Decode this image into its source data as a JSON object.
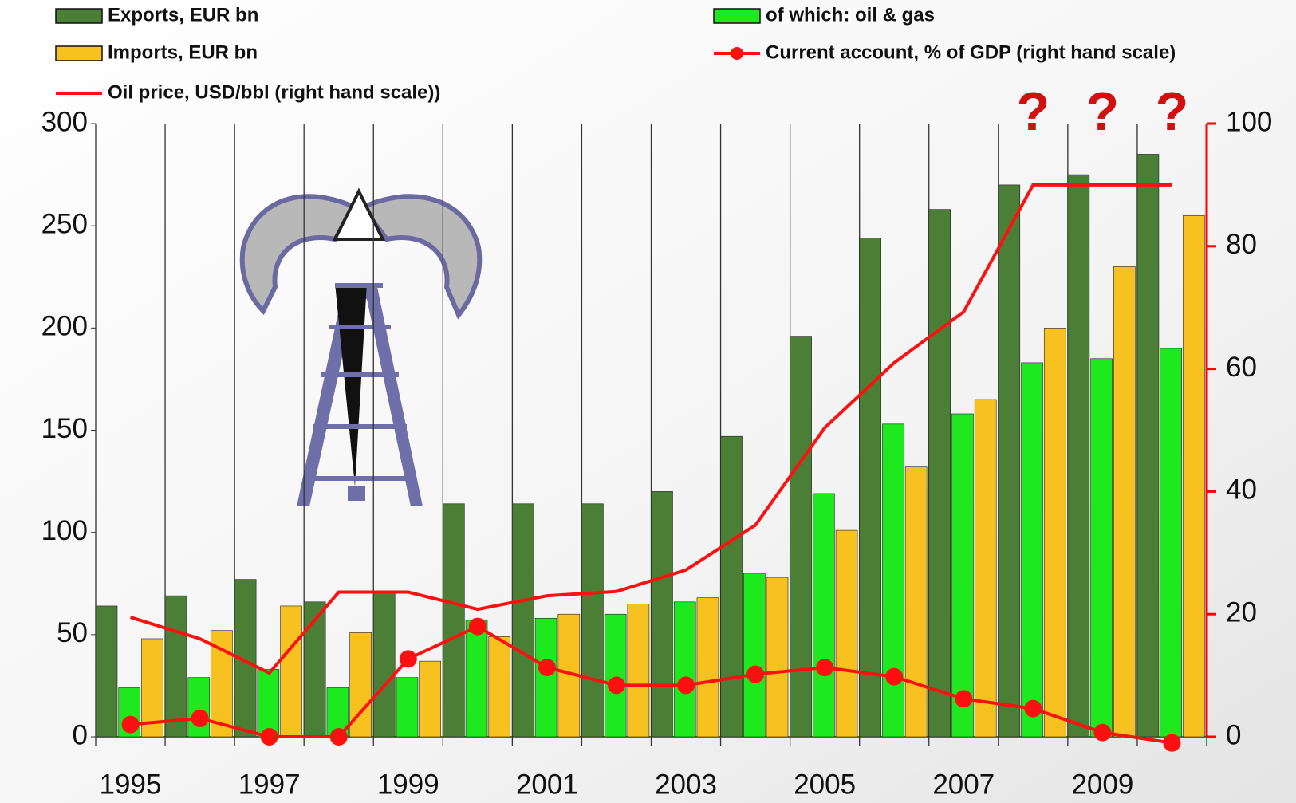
{
  "chart_data": {
    "type": "bar",
    "categories": [
      "1995",
      null,
      "1997",
      null,
      "1999",
      null,
      "2001",
      null,
      "2003",
      null,
      "2005",
      null,
      "2007",
      null,
      "2009",
      null
    ],
    "series": [
      {
        "name": "Exports, EUR bn",
        "color": "#4a7f35",
        "values": [
          64,
          69,
          77,
          66,
          71,
          114,
          114,
          114,
          120,
          147,
          196,
          244,
          258,
          270,
          275,
          285
        ]
      },
      {
        "name": "of which: oil & gas",
        "color": "#1ee81e",
        "values": [
          24,
          29,
          33,
          24,
          29,
          57,
          58,
          60,
          66,
          80,
          119,
          153,
          158,
          183,
          185,
          190
        ]
      },
      {
        "name": "Imports, EUR bn",
        "color": "#f7c21f",
        "values": [
          48,
          52,
          64,
          51,
          37,
          49,
          60,
          65,
          68,
          78,
          101,
          132,
          165,
          200,
          230,
          255
        ]
      },
      {
        "name": "Current account, % of GDP (right hand scale)",
        "color": "#ff1010",
        "type": "line",
        "marker": true,
        "axis": "y2",
        "values": [
          2,
          3,
          0,
          0,
          12.7,
          18,
          11.3,
          8.4,
          8.4,
          10.2,
          11.3,
          9.8,
          6.2,
          4.6,
          0.7,
          -1
        ]
      },
      {
        "name": "Oil price, USD/bbl (right hand scale))",
        "color": "#ff1010",
        "type": "line",
        "marker": false,
        "axis": "y2",
        "values": [
          19.5,
          16,
          10.4,
          23.6,
          23.6,
          20.8,
          23,
          23.7,
          27.2,
          34.5,
          50.4,
          61,
          69.3,
          90,
          90,
          90
        ]
      }
    ],
    "ylim": [
      0,
      300
    ],
    "yticks": [
      0,
      50,
      100,
      150,
      200,
      250,
      300
    ],
    "y2lim": [
      0,
      100
    ],
    "y2ticks": [
      0,
      20,
      40,
      60,
      80,
      100
    ],
    "y2color": "#ff0000",
    "annotations": [
      "?",
      "?",
      "?"
    ]
  }
}
